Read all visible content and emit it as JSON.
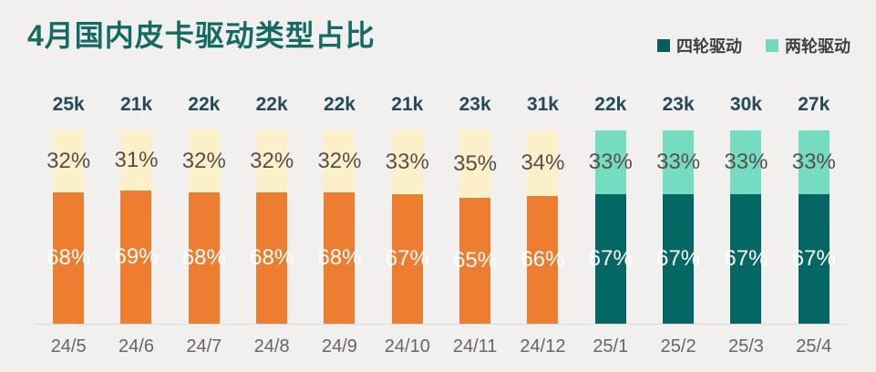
{
  "header": {
    "title": "4月国内皮卡驱动类型占比"
  },
  "legend": [
    {
      "label": "四轮驱动",
      "color": "#065f5c"
    },
    {
      "label": "两轮驱动",
      "color": "#72d7bc"
    }
  ],
  "colors": {
    "background": "#f1f0ee",
    "title": "#156b64",
    "total_label": "#24495a",
    "category_label": "#666666",
    "axis_line": "#dcdbd8",
    "segment_label_dark": "#55504a",
    "segment_label_light": "#ffffff"
  },
  "chart_data": {
    "type": "bar",
    "stacked": "percent",
    "title": "4月国内皮卡驱动类型占比",
    "grid": false,
    "legend_position": "top-right",
    "categories": [
      "24/5",
      "24/6",
      "24/7",
      "24/8",
      "24/9",
      "24/10",
      "24/11",
      "24/12",
      "25/1",
      "25/2",
      "25/3",
      "25/4"
    ],
    "totals": [
      "25k",
      "21k",
      "22k",
      "22k",
      "22k",
      "21k",
      "23k",
      "31k",
      "22k",
      "23k",
      "30k",
      "27k"
    ],
    "series": [
      {
        "name": "四轮驱动",
        "position": "bottom",
        "values": [
          68,
          69,
          68,
          68,
          68,
          67,
          65,
          66,
          67,
          67,
          67,
          67
        ]
      },
      {
        "name": "两轮驱动",
        "position": "top",
        "values": [
          32,
          31,
          32,
          32,
          32,
          33,
          35,
          34,
          33,
          33,
          33,
          33
        ]
      }
    ],
    "value_suffix": "%",
    "style": {
      "past_bottom_color": "#ed7d31",
      "past_top_color": "#fcf0cb",
      "recent_bottom_color": "#056764",
      "recent_top_color": "#76dcc1",
      "recent_start_index": 8
    }
  }
}
